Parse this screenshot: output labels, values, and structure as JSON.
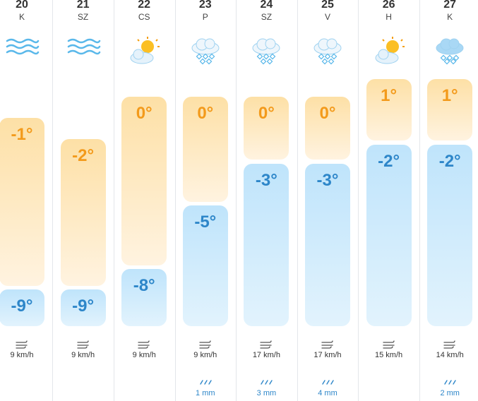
{
  "days": [
    {
      "date": "20",
      "weekday": "K",
      "max": "-1°",
      "min": "-9°",
      "wind": "9 km/h"
    },
    {
      "date": "21",
      "weekday": "SZ",
      "max": "-2°",
      "min": "-9°",
      "wind": "9 km/h"
    },
    {
      "date": "22",
      "weekday": "CS",
      "max": "0°",
      "min": "-8°",
      "wind": "9 km/h"
    },
    {
      "date": "23",
      "weekday": "P",
      "max": "0°",
      "min": "-5°",
      "wind": "9 km/h",
      "precip": "1 mm"
    },
    {
      "date": "24",
      "weekday": "SZ",
      "max": "0°",
      "min": "-3°",
      "wind": "17 km/h",
      "precip": "3 mm"
    },
    {
      "date": "25",
      "weekday": "V",
      "max": "0°",
      "min": "-3°",
      "wind": "17 km/h",
      "precip": "4 mm"
    },
    {
      "date": "26",
      "weekday": "H",
      "max": "1°",
      "min": "-2°",
      "wind": "15 km/h"
    },
    {
      "date": "27",
      "weekday": "K",
      "max": "1°",
      "min": "-2°",
      "wind": "14 km/h",
      "precip": "2 mm"
    }
  ]
}
